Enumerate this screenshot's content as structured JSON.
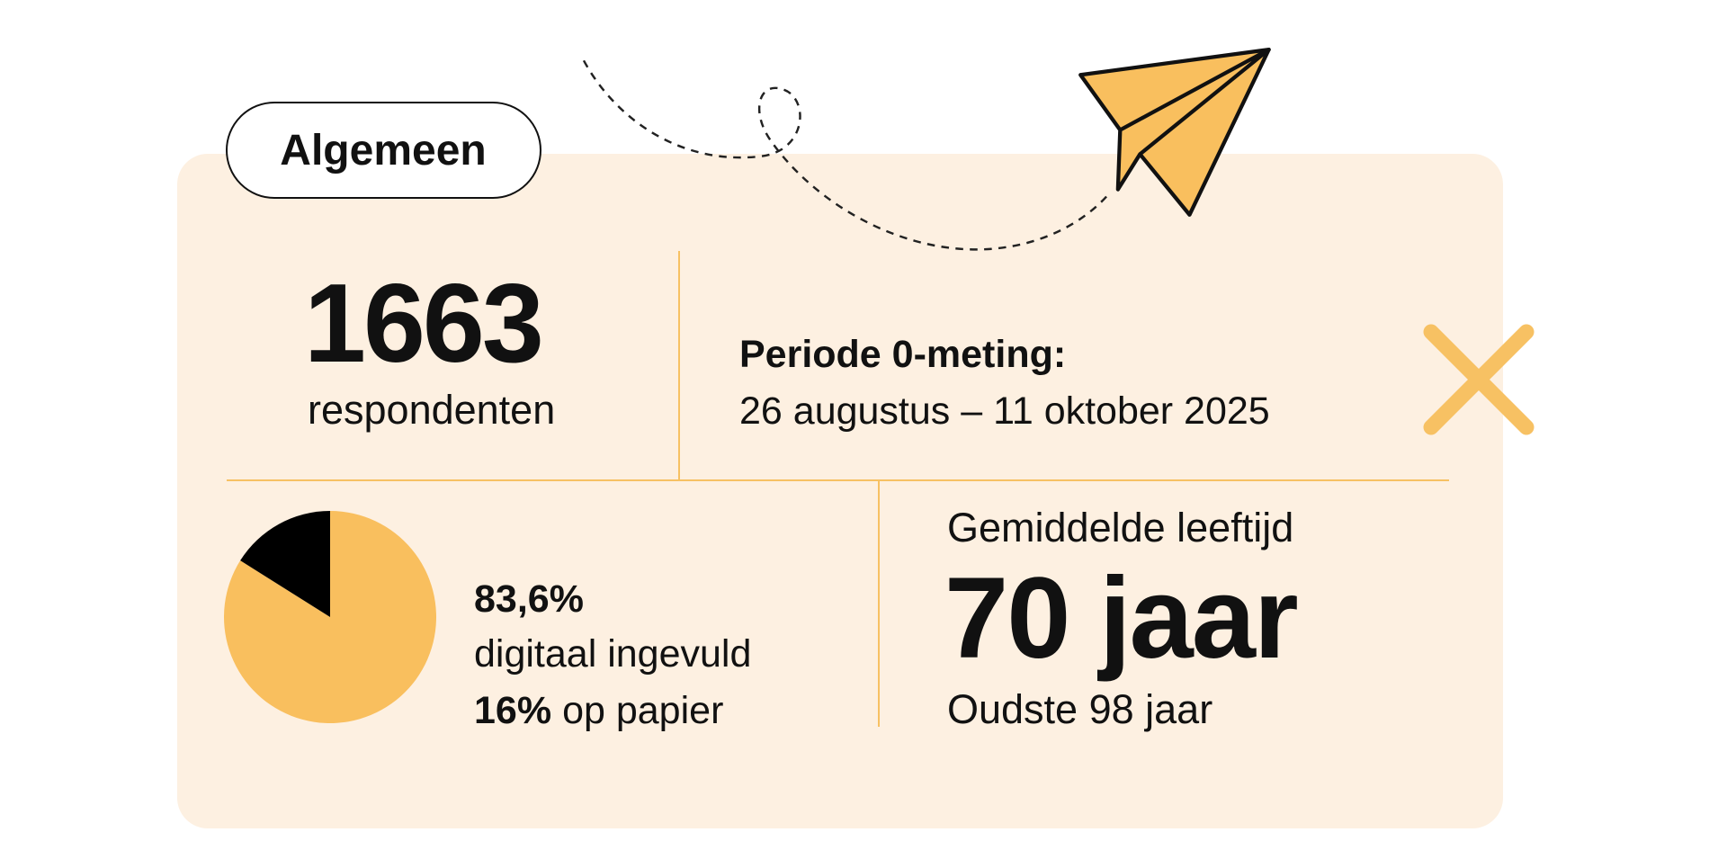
{
  "badge": "Algemeen",
  "respondents": {
    "count": "1663",
    "label": "respondenten"
  },
  "period": {
    "title": "Periode 0-meting:",
    "dates": "26 augustus – 11 oktober 2025"
  },
  "chart_data": {
    "type": "pie",
    "categories": [
      "digitaal ingevuld",
      "op papier"
    ],
    "values": [
      83.6,
      16
    ],
    "value_labels": [
      "83,6%",
      "16%"
    ],
    "colors": [
      "#f9bf5e",
      "#000000"
    ]
  },
  "age": {
    "title": "Gemiddelde leeftijd",
    "average": "70 jaar",
    "oldest": "Oudste 98 jaar"
  }
}
